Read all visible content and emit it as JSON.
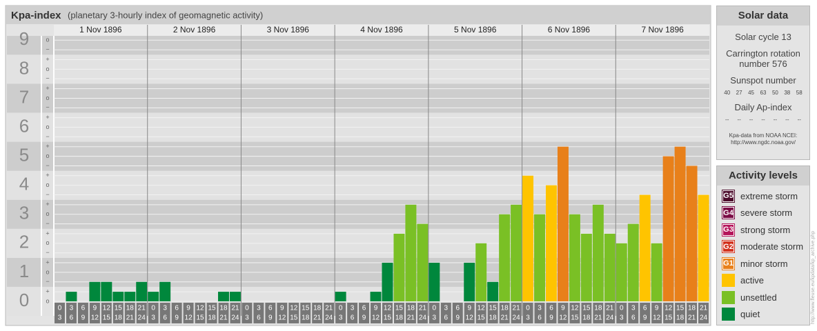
{
  "chart_data": {
    "type": "bar",
    "title": "Kpa-index",
    "subtitle": "(planetary 3-hourly index of geomagnetic activity)",
    "categories": [
      "1 Nov 1896",
      "2 Nov 1896",
      "3 Nov 1896",
      "4 Nov 1896",
      "5 Nov 1896",
      "6 Nov 1896",
      "7 Nov 1896"
    ],
    "hours": [
      [
        0,
        3
      ],
      [
        3,
        6
      ],
      [
        6,
        9
      ],
      [
        9,
        12
      ],
      [
        12,
        15
      ],
      [
        15,
        18
      ],
      [
        18,
        21
      ],
      [
        21,
        24
      ]
    ],
    "values": [
      [
        0,
        0.33,
        0,
        0.67,
        0.67,
        0.33,
        0.33,
        0.67
      ],
      [
        0.33,
        0.67,
        0,
        0,
        0,
        0,
        0.33,
        0.33
      ],
      [
        0,
        0,
        0,
        0,
        0,
        0,
        0,
        0
      ],
      [
        0.33,
        0,
        0,
        0.33,
        1.33,
        2.33,
        3.33,
        2.67
      ],
      [
        1.33,
        0,
        0,
        1.33,
        2,
        0.67,
        3,
        3.33
      ],
      [
        4.33,
        3,
        4,
        5.33,
        3,
        2.33,
        3.33,
        2.33
      ],
      [
        2,
        2.67,
        3.67,
        2,
        5,
        5.33,
        4.67,
        3.67
      ]
    ],
    "colors": [
      [
        "#00873c",
        "#00873c",
        "#00873c",
        "#00873c",
        "#00873c",
        "#00873c",
        "#00873c",
        "#00873c"
      ],
      [
        "#00873c",
        "#00873c",
        "#00873c",
        "#00873c",
        "#00873c",
        "#00873c",
        "#00873c",
        "#00873c"
      ],
      [
        "#00873c",
        "#00873c",
        "#00873c",
        "#00873c",
        "#00873c",
        "#00873c",
        "#00873c",
        "#00873c"
      ],
      [
        "#00873c",
        "#00873c",
        "#00873c",
        "#00873c",
        "#00873c",
        "#7ac025",
        "#7ac025",
        "#7ac025"
      ],
      [
        "#00873c",
        "#00873c",
        "#00873c",
        "#00873c",
        "#7ac025",
        "#00873c",
        "#7ac025",
        "#7ac025"
      ],
      [
        "#ffc400",
        "#7ac025",
        "#ffc400",
        "#e8801a",
        "#7ac025",
        "#7ac025",
        "#7ac025",
        "#7ac025"
      ],
      [
        "#7ac025",
        "#7ac025",
        "#ffc400",
        "#7ac025",
        "#e8801a",
        "#e8801a",
        "#e8801a",
        "#ffc400"
      ]
    ],
    "ylim": [
      -0.5,
      9.15
    ],
    "yticks": [
      0,
      1,
      2,
      3,
      4,
      5,
      6,
      7,
      8,
      9
    ],
    "yminorticks": [
      {
        "value": 0,
        "label": "o"
      },
      {
        "value": 0.33,
        "label": "+"
      },
      {
        "value": 0.67,
        "label": "−"
      },
      {
        "value": 1,
        "label": "o"
      },
      {
        "value": 1.33,
        "label": "+"
      },
      {
        "value": 1.67,
        "label": "−"
      },
      {
        "value": 2,
        "label": "o"
      },
      {
        "value": 2.33,
        "label": "+"
      },
      {
        "value": 2.67,
        "label": "−"
      },
      {
        "value": 3,
        "label": "o"
      },
      {
        "value": 3.33,
        "label": "+"
      },
      {
        "value": 3.67,
        "label": "−"
      },
      {
        "value": 4,
        "label": "o"
      },
      {
        "value": 4.33,
        "label": "+"
      },
      {
        "value": 4.67,
        "label": "−"
      },
      {
        "value": 5,
        "label": "o"
      },
      {
        "value": 5.33,
        "label": "+"
      },
      {
        "value": 5.67,
        "label": "−"
      },
      {
        "value": 6,
        "label": "o"
      },
      {
        "value": 6.33,
        "label": "+"
      },
      {
        "value": 6.67,
        "label": "−"
      },
      {
        "value": 7,
        "label": "o"
      },
      {
        "value": 7.33,
        "label": "+"
      },
      {
        "value": 7.67,
        "label": "−"
      },
      {
        "value": 8,
        "label": "o"
      },
      {
        "value": 8.33,
        "label": "+"
      },
      {
        "value": 8.67,
        "label": "−"
      },
      {
        "value": 9,
        "label": "o"
      }
    ],
    "grid": true
  },
  "solar_data": {
    "title": "Solar data",
    "cycle": "Solar cycle 13",
    "carrington": "Carrington rotation number 576",
    "sunspot_label": "Sunspot number",
    "sunspot": [
      40,
      27,
      45,
      63,
      50,
      38,
      58
    ],
    "ap_label": "Daily Ap-index",
    "ap": [
      "--",
      "--",
      "--",
      "--",
      "--",
      "--",
      "--"
    ],
    "source": "Kpa-data from NOAA NCEI:",
    "url": "http://www.ngdc.noaa.gov/"
  },
  "activity": {
    "title": "Activity levels",
    "items": [
      {
        "code": "G5",
        "name": "extreme storm",
        "color": "#4b0a2a"
      },
      {
        "code": "G4",
        "name": "severe storm",
        "color": "#7a0a45"
      },
      {
        "code": "G3",
        "name": "strong storm",
        "color": "#b4145a"
      },
      {
        "code": "G2",
        "name": "moderate storm",
        "color": "#d2321e"
      },
      {
        "code": "G1",
        "name": "minor storm",
        "color": "#e8801a"
      },
      {
        "name": "active",
        "color": "#ffc400"
      },
      {
        "name": "unsettled",
        "color": "#7ac025"
      },
      {
        "name": "quiet",
        "color": "#00873c"
      }
    ]
  },
  "side_text": "http://www.fleuse.eu/kpdata/kp_archive.php"
}
